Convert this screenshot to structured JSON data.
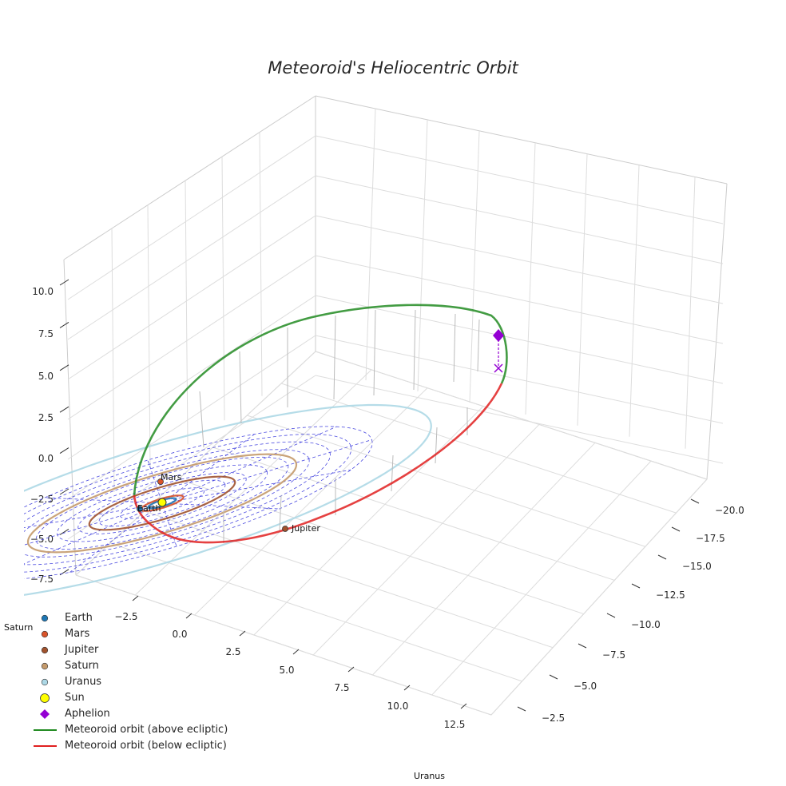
{
  "chart_data": {
    "type": "line",
    "projection": "3d",
    "title": "Meteoroid's Heliocentric Orbit",
    "xlabel": "",
    "ylabel": "",
    "zlabel": "",
    "x_ticks": [
      "−2.5",
      "0.0",
      "2.5",
      "5.0",
      "7.5",
      "10.0",
      "12.5"
    ],
    "y_ticks": [
      "−20.0",
      "−17.5",
      "−15.0",
      "−12.5",
      "−10.0",
      "−7.5",
      "−5.0",
      "−2.5"
    ],
    "z_ticks": [
      "10.0",
      "7.5",
      "5.0",
      "2.5",
      "0.0",
      "−2.5",
      "−5.0",
      "−7.5"
    ],
    "grid": true,
    "legend_position": "bottom-left",
    "planets": [
      {
        "name": "Earth",
        "orbit_radius_au": 1.0,
        "color": "#1f77b4"
      },
      {
        "name": "Mars",
        "orbit_radius_au": 1.52,
        "color": "#d9542b"
      },
      {
        "name": "Jupiter",
        "orbit_radius_au": 5.2,
        "color": "#a0522d"
      },
      {
        "name": "Saturn",
        "orbit_radius_au": 9.58,
        "color": "#c49a6c"
      },
      {
        "name": "Uranus",
        "orbit_radius_au": 19.2,
        "color": "#add8e6"
      }
    ],
    "sun": {
      "name": "Sun",
      "x": 0,
      "y": 0,
      "z": 0,
      "color": "#ffff00"
    },
    "aphelion": {
      "name": "Aphelion",
      "color": "#9400d3"
    },
    "series": [
      {
        "name": "Meteoroid orbit (above ecliptic)",
        "color": "#228b22"
      },
      {
        "name": "Meteoroid orbit (below ecliptic)",
        "color": "#e02020"
      }
    ],
    "annotations": [
      "Mars",
      "Earth",
      "Jupiter",
      "Saturn",
      "Uranus"
    ]
  },
  "legend": {
    "items": [
      {
        "label": "Earth",
        "kind": "dot",
        "color": "#1f77b4"
      },
      {
        "label": "Mars",
        "kind": "dot",
        "color": "#d9542b"
      },
      {
        "label": "Jupiter",
        "kind": "dot",
        "color": "#a0522d"
      },
      {
        "label": "Saturn",
        "kind": "dot",
        "color": "#c49a6c"
      },
      {
        "label": "Uranus",
        "kind": "dot",
        "color": "#add8e6"
      },
      {
        "label": "Sun",
        "kind": "sun",
        "color": "#ffff00"
      },
      {
        "label": "Aphelion",
        "kind": "diamond",
        "color": "#9400d3"
      },
      {
        "label": "Meteoroid orbit (above ecliptic)",
        "kind": "line",
        "color": "#228b22"
      },
      {
        "label": "Meteoroid orbit (below ecliptic)",
        "kind": "line",
        "color": "#e02020"
      }
    ]
  }
}
